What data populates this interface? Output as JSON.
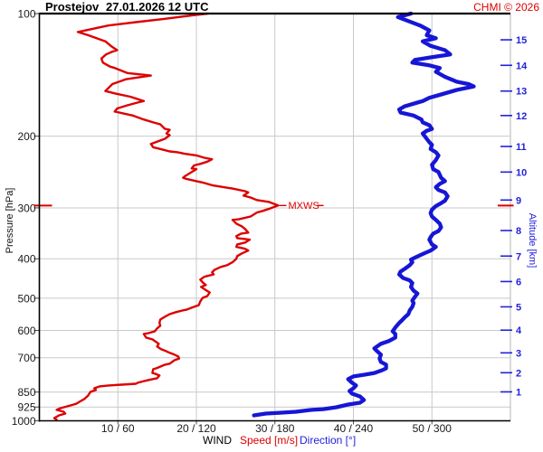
{
  "header": {
    "station": "Prostejov",
    "datetime": "27.01.2026 12 UTC",
    "copyright": "CHMI © 2026"
  },
  "colors": {
    "speed": "#dd0000",
    "direction": "#1616d6",
    "alt_axis": "#2222dd",
    "grid": "#c9c9c9",
    "axis": "#000000",
    "tick_text": "#1a1a1a"
  },
  "axes": {
    "pressure": {
      "label": "Pressure [hPa]",
      "unit": "hPa",
      "scale": "log",
      "range": [
        100,
        1000
      ],
      "ticks": [
        100,
        200,
        300,
        400,
        500,
        600,
        700,
        850,
        925,
        1000
      ]
    },
    "altitude": {
      "label": "Altitude [km]",
      "unit": "km",
      "ticks_km_pressure": [
        [
          15,
          116
        ],
        [
          14,
          134
        ],
        [
          13,
          155
        ],
        [
          12,
          178
        ],
        [
          11,
          212
        ],
        [
          10,
          245
        ],
        [
          9,
          287
        ],
        [
          8,
          341
        ],
        [
          7,
          394
        ],
        [
          6,
          455
        ],
        [
          5,
          525
        ],
        [
          4,
          599
        ],
        [
          3,
          681
        ],
        [
          2,
          762
        ],
        [
          1,
          849
        ]
      ]
    },
    "x": {
      "label_wind": "WIND",
      "label_speed": "Speed [m/s]",
      "label_direction": "Direction [°]",
      "speed_range": [
        0,
        60
      ],
      "direction_range": [
        0,
        360
      ],
      "ticks": [
        {
          "speed": 10,
          "direction": 60,
          "label": "10 / 60"
        },
        {
          "speed": 20,
          "direction": 120,
          "label": "20 / 120"
        },
        {
          "speed": 30,
          "direction": 180,
          "label": "30 / 180"
        },
        {
          "speed": 40,
          "direction": 240,
          "label": "40 / 240"
        },
        {
          "speed": 50,
          "direction": 300,
          "label": "50 / 300"
        }
      ]
    }
  },
  "annotations": {
    "mxws": {
      "label": "MXWS",
      "pressure": 296,
      "speed": 30.4
    }
  },
  "chart_data": {
    "type": "line",
    "title": "Prostejov 27.01.2026 12 UTC",
    "ylabel": "Pressure [hPa]",
    "y2label": "Altitude [km]",
    "xlabel": "WIND Speed [m/s] Direction [°]",
    "series": [
      {
        "name": "Speed [m/s]",
        "units": "m/s",
        "color": "#dd0000",
        "x_key": "speed",
        "points": [
          [
            100,
            21.5
          ],
          [
            101,
            19.5
          ],
          [
            103,
            16.0
          ],
          [
            105,
            12.3
          ],
          [
            107,
            8.8
          ],
          [
            110,
            5.9
          ],
          [
            111,
            4.9
          ],
          [
            113,
            6.2
          ],
          [
            117,
            8.4
          ],
          [
            120,
            9.1
          ],
          [
            123,
            9.9
          ],
          [
            124,
            9.3
          ],
          [
            126,
            8.5
          ],
          [
            129,
            7.9
          ],
          [
            132,
            8.1
          ],
          [
            135,
            9.0
          ],
          [
            136,
            9.6
          ],
          [
            140,
            11.2
          ],
          [
            141,
            12.7
          ],
          [
            142,
            14.2
          ],
          [
            145,
            11.0
          ],
          [
            149,
            9.3
          ],
          [
            155,
            8.4
          ],
          [
            157,
            9.6
          ],
          [
            160,
            11.6
          ],
          [
            164,
            13.3
          ],
          [
            165,
            12.7
          ],
          [
            168,
            11.2
          ],
          [
            171,
            9.9
          ],
          [
            174,
            9.6
          ],
          [
            178,
            11.9
          ],
          [
            182,
            13.3
          ],
          [
            185,
            14.5
          ],
          [
            187,
            15.4
          ],
          [
            192,
            16.0
          ],
          [
            193,
            16.6
          ],
          [
            197,
            16.2
          ],
          [
            199,
            16.6
          ],
          [
            203,
            16.0
          ],
          [
            206,
            15.1
          ],
          [
            209,
            14.2
          ],
          [
            213,
            14.5
          ],
          [
            215,
            15.4
          ],
          [
            218,
            16.6
          ],
          [
            219,
            17.6
          ],
          [
            221,
            18.5
          ],
          [
            223,
            20.0
          ],
          [
            226,
            21.0
          ],
          [
            228,
            22.0
          ],
          [
            231,
            21.4
          ],
          [
            234,
            20.5
          ],
          [
            236,
            19.7
          ],
          [
            240,
            19.4
          ],
          [
            241,
            20.0
          ],
          [
            249,
            18.8
          ],
          [
            251,
            18.5
          ],
          [
            253,
            18.3
          ],
          [
            255,
            18.8
          ],
          [
            260,
            20.8
          ],
          [
            264,
            22.0
          ],
          [
            267,
            23.5
          ],
          [
            269,
            24.6
          ],
          [
            273,
            26.2
          ],
          [
            275,
            26.6
          ],
          [
            280,
            26.0
          ],
          [
            283,
            26.9
          ],
          [
            287,
            27.7
          ],
          [
            290,
            29.2
          ],
          [
            296,
            30.4
          ],
          [
            302,
            29.2
          ],
          [
            305,
            28.5
          ],
          [
            308,
            27.7
          ],
          [
            315,
            26.9
          ],
          [
            320,
            25.4
          ],
          [
            321,
            24.6
          ],
          [
            328,
            25.1
          ],
          [
            333,
            25.8
          ],
          [
            338,
            26.2
          ],
          [
            345,
            26.6
          ],
          [
            347,
            25.7
          ],
          [
            352,
            25.1
          ],
          [
            356,
            25.2
          ],
          [
            359,
            26.8
          ],
          [
            365,
            26.2
          ],
          [
            369,
            25.2
          ],
          [
            374,
            25.1
          ],
          [
            378,
            26.2
          ],
          [
            382,
            26.6
          ],
          [
            388,
            25.8
          ],
          [
            394,
            25.2
          ],
          [
            400,
            25.1
          ],
          [
            408,
            24.6
          ],
          [
            415,
            23.9
          ],
          [
            419,
            23.1
          ],
          [
            426,
            22.3
          ],
          [
            432,
            22.0
          ],
          [
            437,
            22.2
          ],
          [
            443,
            21.0
          ],
          [
            450,
            20.5
          ],
          [
            457,
            20.8
          ],
          [
            464,
            21.2
          ],
          [
            469,
            20.6
          ],
          [
            476,
            21.1
          ],
          [
            484,
            21.7
          ],
          [
            494,
            21.4
          ],
          [
            499,
            20.8
          ],
          [
            509,
            20.5
          ],
          [
            520,
            20.3
          ],
          [
            525,
            19.7
          ],
          [
            533,
            18.8
          ],
          [
            536,
            18.2
          ],
          [
            541,
            17.4
          ],
          [
            547,
            16.6
          ],
          [
            555,
            16.0
          ],
          [
            564,
            15.4
          ],
          [
            575,
            15.3
          ],
          [
            584,
            15.4
          ],
          [
            593,
            15.0
          ],
          [
            603,
            14.7
          ],
          [
            609,
            13.9
          ],
          [
            612,
            13.3
          ],
          [
            625,
            13.6
          ],
          [
            631,
            14.4
          ],
          [
            647,
            15.2
          ],
          [
            657,
            15.0
          ],
          [
            667,
            15.5
          ],
          [
            674,
            16.1
          ],
          [
            681,
            16.6
          ],
          [
            688,
            17.2
          ],
          [
            695,
            17.7
          ],
          [
            703,
            17.8
          ],
          [
            710,
            17.2
          ],
          [
            724,
            16.6
          ],
          [
            728,
            16.0
          ],
          [
            743,
            14.9
          ],
          [
            747,
            14.5
          ],
          [
            763,
            14.4
          ],
          [
            766,
            14.7
          ],
          [
            774,
            15.3
          ],
          [
            786,
            15.0
          ],
          [
            790,
            14.4
          ],
          [
            798,
            13.4
          ],
          [
            807,
            12.5
          ],
          [
            811,
            12.3
          ],
          [
            815,
            10.5
          ],
          [
            819,
            8.8
          ],
          [
            823,
            7.7
          ],
          [
            832,
            7.0
          ],
          [
            840,
            7.2
          ],
          [
            849,
            6.5
          ],
          [
            867,
            6.2
          ],
          [
            885,
            5.7
          ],
          [
            898,
            5.1
          ],
          [
            908,
            4.7
          ],
          [
            921,
            3.6
          ],
          [
            931,
            2.7
          ],
          [
            940,
            2.2
          ],
          [
            950,
            3.1
          ],
          [
            960,
            3.3
          ],
          [
            970,
            2.5
          ],
          [
            985,
            1.9
          ],
          [
            995,
            2.2
          ]
        ]
      },
      {
        "name": "Direction [°]",
        "units": "deg",
        "color": "#1616d6",
        "x_key": "direction",
        "points": [
          [
            100,
            284
          ],
          [
            102,
            274
          ],
          [
            104,
            281
          ],
          [
            107,
            291
          ],
          [
            110,
            298
          ],
          [
            113,
            296
          ],
          [
            115,
            303
          ],
          [
            117,
            293
          ],
          [
            120,
            299
          ],
          [
            123,
            310
          ],
          [
            126,
            314
          ],
          [
            128,
            300
          ],
          [
            130,
            287
          ],
          [
            132,
            285
          ],
          [
            134,
            298
          ],
          [
            136,
            306
          ],
          [
            139,
            303
          ],
          [
            143,
            310
          ],
          [
            147,
            319
          ],
          [
            149,
            328
          ],
          [
            151,
            332
          ],
          [
            154,
            319
          ],
          [
            158,
            307
          ],
          [
            161,
            298
          ],
          [
            164,
            293
          ],
          [
            165,
            290
          ],
          [
            169,
            279
          ],
          [
            172,
            275
          ],
          [
            175,
            276
          ],
          [
            178,
            286
          ],
          [
            182,
            292
          ],
          [
            185,
            293
          ],
          [
            188,
            298
          ],
          [
            192,
            300
          ],
          [
            194,
            296
          ],
          [
            197,
            293
          ],
          [
            203,
            296
          ],
          [
            207,
            298
          ],
          [
            210,
            300
          ],
          [
            215,
            299
          ],
          [
            219,
            303
          ],
          [
            223,
            305
          ],
          [
            229,
            303
          ],
          [
            235,
            300
          ],
          [
            241,
            301
          ],
          [
            245,
            305
          ],
          [
            253,
            307
          ],
          [
            258,
            310
          ],
          [
            262,
            306
          ],
          [
            267,
            303
          ],
          [
            271,
            305
          ],
          [
            275,
            310
          ],
          [
            281,
            312
          ],
          [
            288,
            310
          ],
          [
            292,
            307
          ],
          [
            297,
            303
          ],
          [
            303,
            300
          ],
          [
            309,
            299
          ],
          [
            315,
            300
          ],
          [
            321,
            303
          ],
          [
            328,
            306
          ],
          [
            335,
            307
          ],
          [
            342,
            305
          ],
          [
            347,
            301
          ],
          [
            354,
            299
          ],
          [
            359,
            298
          ],
          [
            369,
            300
          ],
          [
            374,
            303
          ],
          [
            382,
            299
          ],
          [
            388,
            294
          ],
          [
            396,
            288
          ],
          [
            402,
            284
          ],
          [
            408,
            285
          ],
          [
            415,
            283
          ],
          [
            424,
            279
          ],
          [
            430,
            276
          ],
          [
            437,
            275
          ],
          [
            446,
            278
          ],
          [
            452,
            283
          ],
          [
            459,
            285
          ],
          [
            469,
            284
          ],
          [
            479,
            286
          ],
          [
            487,
            289
          ],
          [
            496,
            287
          ],
          [
            507,
            285
          ],
          [
            514,
            286
          ],
          [
            525,
            285
          ],
          [
            536,
            283
          ],
          [
            547,
            282
          ],
          [
            558,
            279
          ],
          [
            567,
            277
          ],
          [
            575,
            275
          ],
          [
            590,
            272
          ],
          [
            603,
            270
          ],
          [
            612,
            272
          ],
          [
            625,
            272
          ],
          [
            637,
            267
          ],
          [
            647,
            261
          ],
          [
            664,
            256
          ],
          [
            674,
            258
          ],
          [
            688,
            261
          ],
          [
            703,
            260
          ],
          [
            717,
            261
          ],
          [
            728,
            265
          ],
          [
            743,
            265
          ],
          [
            751,
            262
          ],
          [
            763,
            256
          ],
          [
            770,
            249
          ],
          [
            778,
            240
          ],
          [
            790,
            236
          ],
          [
            807,
            239
          ],
          [
            819,
            242
          ],
          [
            832,
            240
          ],
          [
            845,
            237
          ],
          [
            858,
            239
          ],
          [
            871,
            245
          ],
          [
            889,
            248
          ],
          [
            903,
            245
          ],
          [
            912,
            236
          ],
          [
            926,
            227
          ],
          [
            936,
            217
          ],
          [
            940,
            208
          ],
          [
            950,
            196
          ],
          [
            955,
            185
          ],
          [
            960,
            173
          ],
          [
            970,
            164
          ]
        ]
      }
    ]
  }
}
